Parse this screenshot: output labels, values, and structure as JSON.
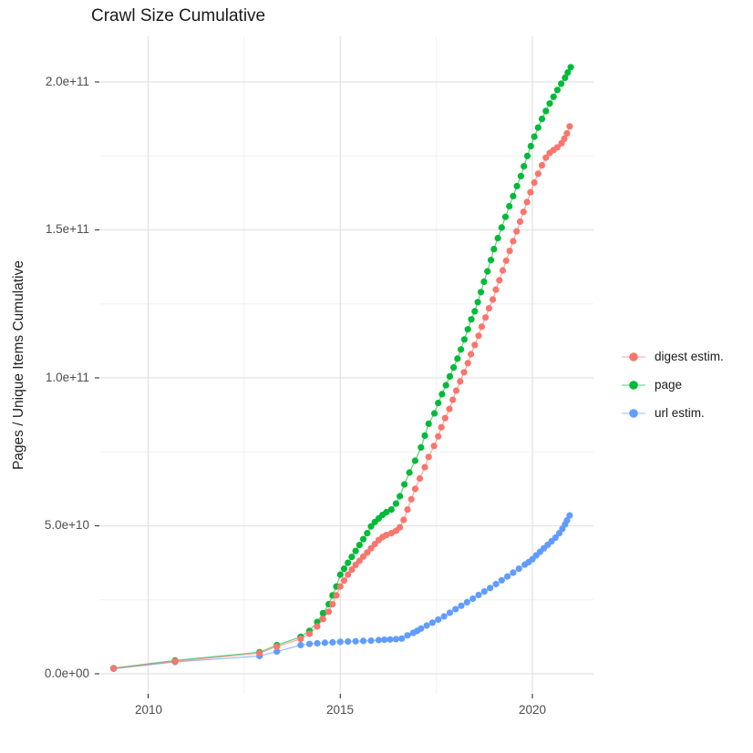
{
  "chart_data": {
    "type": "scatter",
    "title": "Crawl Size Cumulative",
    "xlabel": "",
    "ylabel": "Pages / Unique Items Cumulative",
    "value_unit": "billions of pages / unique items (1e9)",
    "grid": true,
    "legend_position": "right",
    "background": "#FFFFFF",
    "grid_major_color": "#E3E3E3",
    "grid_minor_color": "#F0F0F0",
    "tick_mark_color": "#333333",
    "tick_label_color": "#4D4D4D",
    "x_tick_labels": [
      "2010",
      "2015",
      "2020"
    ],
    "x_major_years": [
      2010,
      2015,
      2020
    ],
    "x_minor_years": [
      2012.5,
      2017.5
    ],
    "y_tick_labels": [
      "0.0e+00",
      "5.0e+10",
      "1.0e+11",
      "1.5e+11",
      "2.0e+11"
    ],
    "y_major_billions": [
      0,
      50,
      100,
      150,
      200
    ],
    "y_minor_billions": [
      25,
      75,
      125,
      175
    ],
    "xlim": [
      2008.7,
      2021.6
    ],
    "ylim_billions": [
      0,
      215
    ],
    "series": [
      {
        "name": "digest estim.",
        "color": "#F8766D",
        "points": [
          [
            2009.1,
            1.8
          ],
          [
            2010.7,
            4.2
          ],
          [
            2012.9,
            7.0
          ],
          [
            2013.35,
            9.2
          ],
          [
            2013.97,
            11.8
          ],
          [
            2014.2,
            13.5
          ],
          [
            2014.4,
            16.0
          ],
          [
            2014.55,
            18.5
          ],
          [
            2014.7,
            21.0
          ],
          [
            2014.8,
            23.5
          ],
          [
            2014.9,
            26.5
          ],
          [
            2015.0,
            29.5
          ],
          [
            2015.1,
            31.5
          ],
          [
            2015.2,
            33.5
          ],
          [
            2015.3,
            35.2
          ],
          [
            2015.4,
            36.8
          ],
          [
            2015.5,
            38.2
          ],
          [
            2015.6,
            39.6
          ],
          [
            2015.7,
            41.0
          ],
          [
            2015.8,
            42.4
          ],
          [
            2015.9,
            43.8
          ],
          [
            2016.0,
            45.2
          ],
          [
            2016.1,
            46.2
          ],
          [
            2016.2,
            46.9
          ],
          [
            2016.33,
            47.5
          ],
          [
            2016.45,
            48.3
          ],
          [
            2016.55,
            49.5
          ],
          [
            2016.65,
            52.0
          ],
          [
            2016.75,
            55.5
          ],
          [
            2016.85,
            59.0
          ],
          [
            2016.95,
            62.5
          ],
          [
            2017.07,
            66.0
          ],
          [
            2017.2,
            69.8
          ],
          [
            2017.3,
            73.3
          ],
          [
            2017.44,
            77.0
          ],
          [
            2017.55,
            80.2
          ],
          [
            2017.63,
            83.3
          ],
          [
            2017.73,
            86.4
          ],
          [
            2017.84,
            89.5
          ],
          [
            2017.93,
            92.6
          ],
          [
            2018.02,
            95.7
          ],
          [
            2018.12,
            98.8
          ],
          [
            2018.22,
            101.9
          ],
          [
            2018.32,
            105.0
          ],
          [
            2018.4,
            108.0
          ],
          [
            2018.5,
            111.1
          ],
          [
            2018.6,
            114.2
          ],
          [
            2018.68,
            117.3
          ],
          [
            2018.78,
            120.4
          ],
          [
            2018.87,
            123.5
          ],
          [
            2018.97,
            126.5
          ],
          [
            2019.05,
            129.8
          ],
          [
            2019.14,
            133.0
          ],
          [
            2019.23,
            136.3
          ],
          [
            2019.32,
            139.6
          ],
          [
            2019.41,
            142.9
          ],
          [
            2019.5,
            146.2
          ],
          [
            2019.59,
            149.5
          ],
          [
            2019.68,
            152.8
          ],
          [
            2019.77,
            156.1
          ],
          [
            2019.86,
            159.4
          ],
          [
            2019.95,
            162.7
          ],
          [
            2020.05,
            166.0
          ],
          [
            2020.15,
            169.0
          ],
          [
            2020.25,
            171.8
          ],
          [
            2020.35,
            174.4
          ],
          [
            2020.45,
            176.0
          ],
          [
            2020.55,
            177.0
          ],
          [
            2020.65,
            177.9
          ],
          [
            2020.76,
            179.3
          ],
          [
            2020.83,
            180.8
          ],
          [
            2020.9,
            182.6
          ],
          [
            2020.97,
            185.0
          ]
        ]
      },
      {
        "name": "page",
        "color": "#00BA38",
        "points": [
          [
            2009.1,
            1.9
          ],
          [
            2010.7,
            4.5
          ],
          [
            2012.9,
            7.3
          ],
          [
            2013.35,
            9.7
          ],
          [
            2013.97,
            12.5
          ],
          [
            2014.2,
            14.5
          ],
          [
            2014.4,
            17.5
          ],
          [
            2014.55,
            20.5
          ],
          [
            2014.7,
            23.5
          ],
          [
            2014.8,
            26.5
          ],
          [
            2014.9,
            29.5
          ],
          [
            2015.0,
            33.5
          ],
          [
            2015.1,
            35.5
          ],
          [
            2015.2,
            37.5
          ],
          [
            2015.3,
            39.5
          ],
          [
            2015.4,
            41.5
          ],
          [
            2015.5,
            43.5
          ],
          [
            2015.6,
            45.5
          ],
          [
            2015.7,
            47.5
          ],
          [
            2015.8,
            49.8
          ],
          [
            2015.9,
            51.3
          ],
          [
            2016.0,
            52.5
          ],
          [
            2016.1,
            53.7
          ],
          [
            2016.2,
            54.6
          ],
          [
            2016.33,
            55.5
          ],
          [
            2016.45,
            57.5
          ],
          [
            2016.55,
            60.0
          ],
          [
            2016.67,
            64.0
          ],
          [
            2016.8,
            68.0
          ],
          [
            2016.95,
            72.0
          ],
          [
            2017.1,
            76.5
          ],
          [
            2017.2,
            80.5
          ],
          [
            2017.3,
            84.5
          ],
          [
            2017.45,
            88.0
          ],
          [
            2017.55,
            91.5
          ],
          [
            2017.65,
            94.5
          ],
          [
            2017.75,
            97.5
          ],
          [
            2017.85,
            100.5
          ],
          [
            2017.95,
            103.5
          ],
          [
            2018.05,
            106.5
          ],
          [
            2018.14,
            109.6
          ],
          [
            2018.23,
            113.0
          ],
          [
            2018.32,
            116.4
          ],
          [
            2018.41,
            119.8
          ],
          [
            2018.5,
            122.5
          ],
          [
            2018.58,
            125.6
          ],
          [
            2018.66,
            129.0
          ],
          [
            2018.74,
            132.5
          ],
          [
            2018.83,
            136.0
          ],
          [
            2018.92,
            139.8
          ],
          [
            2019.0,
            143.5
          ],
          [
            2019.1,
            147.2
          ],
          [
            2019.2,
            150.8
          ],
          [
            2019.3,
            154.4
          ],
          [
            2019.4,
            158.0
          ],
          [
            2019.5,
            161.4
          ],
          [
            2019.6,
            164.8
          ],
          [
            2019.7,
            168.2
          ],
          [
            2019.78,
            171.5
          ],
          [
            2019.87,
            175.0
          ],
          [
            2019.96,
            178.3
          ],
          [
            2020.05,
            181.5
          ],
          [
            2020.15,
            184.6
          ],
          [
            2020.25,
            187.5
          ],
          [
            2020.35,
            190.2
          ],
          [
            2020.45,
            192.7
          ],
          [
            2020.55,
            195.0
          ],
          [
            2020.65,
            197.3
          ],
          [
            2020.75,
            199.4
          ],
          [
            2020.85,
            201.4
          ],
          [
            2020.92,
            203.2
          ],
          [
            2021.0,
            205.0
          ]
        ]
      },
      {
        "name": "url estim.",
        "color": "#619CFF",
        "points": [
          [
            2009.1,
            1.7
          ],
          [
            2010.7,
            4.0
          ],
          [
            2012.9,
            6.0
          ],
          [
            2013.35,
            7.5
          ],
          [
            2013.97,
            9.7
          ],
          [
            2014.2,
            10.1
          ],
          [
            2014.4,
            10.3
          ],
          [
            2014.6,
            10.5
          ],
          [
            2014.8,
            10.6
          ],
          [
            2015.0,
            10.8
          ],
          [
            2015.2,
            10.9
          ],
          [
            2015.4,
            11.0
          ],
          [
            2015.6,
            11.1
          ],
          [
            2015.8,
            11.2
          ],
          [
            2016.0,
            11.4
          ],
          [
            2016.15,
            11.5
          ],
          [
            2016.3,
            11.6
          ],
          [
            2016.45,
            11.7
          ],
          [
            2016.6,
            11.9
          ],
          [
            2016.75,
            13.0
          ],
          [
            2016.9,
            13.8
          ],
          [
            2017.0,
            14.5
          ],
          [
            2017.1,
            15.3
          ],
          [
            2017.25,
            16.3
          ],
          [
            2017.4,
            17.3
          ],
          [
            2017.55,
            18.3
          ],
          [
            2017.7,
            19.4
          ],
          [
            2017.85,
            20.6
          ],
          [
            2018.0,
            21.8
          ],
          [
            2018.15,
            23.0
          ],
          [
            2018.3,
            24.2
          ],
          [
            2018.45,
            25.4
          ],
          [
            2018.6,
            26.6
          ],
          [
            2018.75,
            27.8
          ],
          [
            2018.9,
            29.0
          ],
          [
            2019.05,
            30.3
          ],
          [
            2019.2,
            31.6
          ],
          [
            2019.35,
            32.9
          ],
          [
            2019.5,
            34.2
          ],
          [
            2019.65,
            35.5
          ],
          [
            2019.8,
            36.9
          ],
          [
            2019.9,
            37.7
          ],
          [
            2020.0,
            38.7
          ],
          [
            2020.1,
            40.0
          ],
          [
            2020.2,
            41.2
          ],
          [
            2020.3,
            42.4
          ],
          [
            2020.4,
            43.6
          ],
          [
            2020.5,
            44.8
          ],
          [
            2020.6,
            46.0
          ],
          [
            2020.7,
            47.5
          ],
          [
            2020.78,
            49.0
          ],
          [
            2020.85,
            50.5
          ],
          [
            2020.9,
            51.8
          ],
          [
            2020.97,
            53.5
          ]
        ]
      }
    ]
  }
}
